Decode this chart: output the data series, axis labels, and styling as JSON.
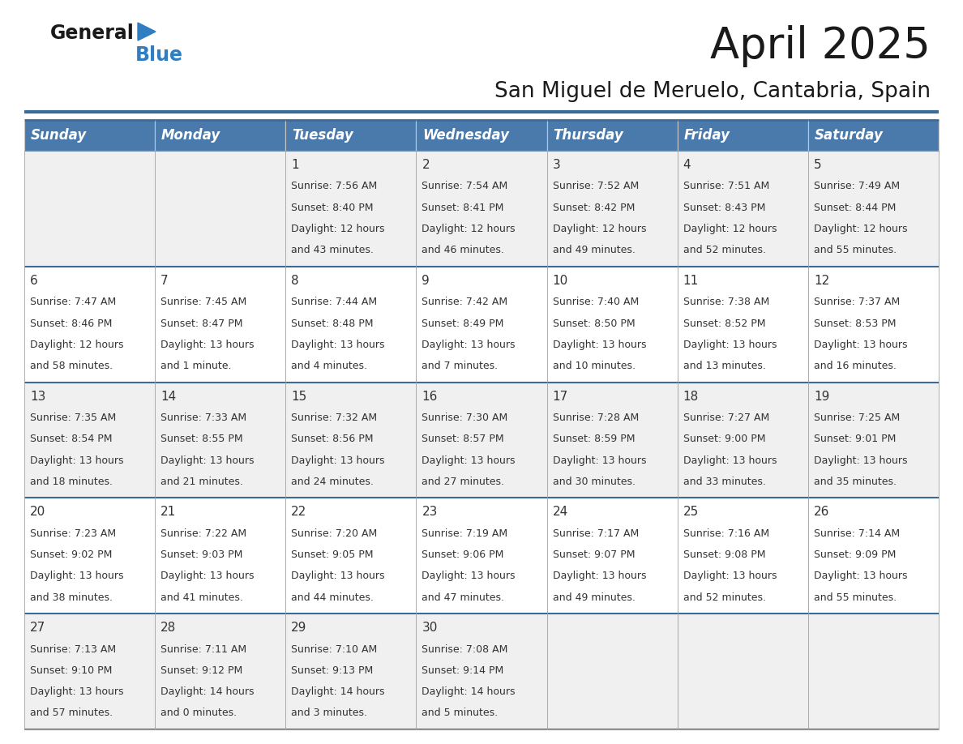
{
  "title": "April 2025",
  "subtitle": "San Miguel de Meruelo, Cantabria, Spain",
  "header_color": "#4A7AAB",
  "header_text_color": "#FFFFFF",
  "background_color": "#FFFFFF",
  "alt_row_color": "#F0F0F0",
  "border_color": "#3A6A9B",
  "cell_border_color": "#AAAAAA",
  "day_headers": [
    "Sunday",
    "Monday",
    "Tuesday",
    "Wednesday",
    "Thursday",
    "Friday",
    "Saturday"
  ],
  "title_fontsize": 38,
  "subtitle_fontsize": 19,
  "header_fontsize": 12,
  "day_num_fontsize": 11,
  "cell_fontsize": 9,
  "logo_text1": "General",
  "logo_text2": "Blue",
  "logo_color1": "#1A1A1A",
  "logo_color2": "#2E7EC1",
  "triangle_color": "#2E7EC1",
  "weeks": [
    [
      {
        "day": "",
        "sunrise": "",
        "sunset": "",
        "daylight_line1": "",
        "daylight_line2": ""
      },
      {
        "day": "",
        "sunrise": "",
        "sunset": "",
        "daylight_line1": "",
        "daylight_line2": ""
      },
      {
        "day": "1",
        "sunrise": "7:56 AM",
        "sunset": "8:40 PM",
        "daylight_line1": "12 hours",
        "daylight_line2": "and 43 minutes."
      },
      {
        "day": "2",
        "sunrise": "7:54 AM",
        "sunset": "8:41 PM",
        "daylight_line1": "12 hours",
        "daylight_line2": "and 46 minutes."
      },
      {
        "day": "3",
        "sunrise": "7:52 AM",
        "sunset": "8:42 PM",
        "daylight_line1": "12 hours",
        "daylight_line2": "and 49 minutes."
      },
      {
        "day": "4",
        "sunrise": "7:51 AM",
        "sunset": "8:43 PM",
        "daylight_line1": "12 hours",
        "daylight_line2": "and 52 minutes."
      },
      {
        "day": "5",
        "sunrise": "7:49 AM",
        "sunset": "8:44 PM",
        "daylight_line1": "12 hours",
        "daylight_line2": "and 55 minutes."
      }
    ],
    [
      {
        "day": "6",
        "sunrise": "7:47 AM",
        "sunset": "8:46 PM",
        "daylight_line1": "12 hours",
        "daylight_line2": "and 58 minutes."
      },
      {
        "day": "7",
        "sunrise": "7:45 AM",
        "sunset": "8:47 PM",
        "daylight_line1": "13 hours",
        "daylight_line2": "and 1 minute."
      },
      {
        "day": "8",
        "sunrise": "7:44 AM",
        "sunset": "8:48 PM",
        "daylight_line1": "13 hours",
        "daylight_line2": "and 4 minutes."
      },
      {
        "day": "9",
        "sunrise": "7:42 AM",
        "sunset": "8:49 PM",
        "daylight_line1": "13 hours",
        "daylight_line2": "and 7 minutes."
      },
      {
        "day": "10",
        "sunrise": "7:40 AM",
        "sunset": "8:50 PM",
        "daylight_line1": "13 hours",
        "daylight_line2": "and 10 minutes."
      },
      {
        "day": "11",
        "sunrise": "7:38 AM",
        "sunset": "8:52 PM",
        "daylight_line1": "13 hours",
        "daylight_line2": "and 13 minutes."
      },
      {
        "day": "12",
        "sunrise": "7:37 AM",
        "sunset": "8:53 PM",
        "daylight_line1": "13 hours",
        "daylight_line2": "and 16 minutes."
      }
    ],
    [
      {
        "day": "13",
        "sunrise": "7:35 AM",
        "sunset": "8:54 PM",
        "daylight_line1": "13 hours",
        "daylight_line2": "and 18 minutes."
      },
      {
        "day": "14",
        "sunrise": "7:33 AM",
        "sunset": "8:55 PM",
        "daylight_line1": "13 hours",
        "daylight_line2": "and 21 minutes."
      },
      {
        "day": "15",
        "sunrise": "7:32 AM",
        "sunset": "8:56 PM",
        "daylight_line1": "13 hours",
        "daylight_line2": "and 24 minutes."
      },
      {
        "day": "16",
        "sunrise": "7:30 AM",
        "sunset": "8:57 PM",
        "daylight_line1": "13 hours",
        "daylight_line2": "and 27 minutes."
      },
      {
        "day": "17",
        "sunrise": "7:28 AM",
        "sunset": "8:59 PM",
        "daylight_line1": "13 hours",
        "daylight_line2": "and 30 minutes."
      },
      {
        "day": "18",
        "sunrise": "7:27 AM",
        "sunset": "9:00 PM",
        "daylight_line1": "13 hours",
        "daylight_line2": "and 33 minutes."
      },
      {
        "day": "19",
        "sunrise": "7:25 AM",
        "sunset": "9:01 PM",
        "daylight_line1": "13 hours",
        "daylight_line2": "and 35 minutes."
      }
    ],
    [
      {
        "day": "20",
        "sunrise": "7:23 AM",
        "sunset": "9:02 PM",
        "daylight_line1": "13 hours",
        "daylight_line2": "and 38 minutes."
      },
      {
        "day": "21",
        "sunrise": "7:22 AM",
        "sunset": "9:03 PM",
        "daylight_line1": "13 hours",
        "daylight_line2": "and 41 minutes."
      },
      {
        "day": "22",
        "sunrise": "7:20 AM",
        "sunset": "9:05 PM",
        "daylight_line1": "13 hours",
        "daylight_line2": "and 44 minutes."
      },
      {
        "day": "23",
        "sunrise": "7:19 AM",
        "sunset": "9:06 PM",
        "daylight_line1": "13 hours",
        "daylight_line2": "and 47 minutes."
      },
      {
        "day": "24",
        "sunrise": "7:17 AM",
        "sunset": "9:07 PM",
        "daylight_line1": "13 hours",
        "daylight_line2": "and 49 minutes."
      },
      {
        "day": "25",
        "sunrise": "7:16 AM",
        "sunset": "9:08 PM",
        "daylight_line1": "13 hours",
        "daylight_line2": "and 52 minutes."
      },
      {
        "day": "26",
        "sunrise": "7:14 AM",
        "sunset": "9:09 PM",
        "daylight_line1": "13 hours",
        "daylight_line2": "and 55 minutes."
      }
    ],
    [
      {
        "day": "27",
        "sunrise": "7:13 AM",
        "sunset": "9:10 PM",
        "daylight_line1": "13 hours",
        "daylight_line2": "and 57 minutes."
      },
      {
        "day": "28",
        "sunrise": "7:11 AM",
        "sunset": "9:12 PM",
        "daylight_line1": "14 hours",
        "daylight_line2": "and 0 minutes."
      },
      {
        "day": "29",
        "sunrise": "7:10 AM",
        "sunset": "9:13 PM",
        "daylight_line1": "14 hours",
        "daylight_line2": "and 3 minutes."
      },
      {
        "day": "30",
        "sunrise": "7:08 AM",
        "sunset": "9:14 PM",
        "daylight_line1": "14 hours",
        "daylight_line2": "and 5 minutes."
      },
      {
        "day": "",
        "sunrise": "",
        "sunset": "",
        "daylight_line1": "",
        "daylight_line2": ""
      },
      {
        "day": "",
        "sunrise": "",
        "sunset": "",
        "daylight_line1": "",
        "daylight_line2": ""
      },
      {
        "day": "",
        "sunrise": "",
        "sunset": "",
        "daylight_line1": "",
        "daylight_line2": ""
      }
    ]
  ]
}
